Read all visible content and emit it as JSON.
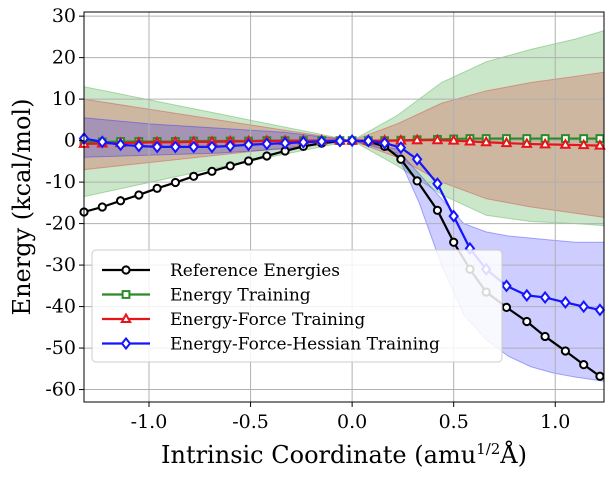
{
  "chart_data": {
    "type": "line",
    "xlabel": "Intrinsic Coordinate (amu",
    "xlabel_sup": "1/2",
    "xlabel_unit": "Å)",
    "ylabel": "Energy (kcal/mol)",
    "xlim": [
      -1.32,
      1.24
    ],
    "ylim": [
      -63,
      31
    ],
    "xticks": [
      -1.0,
      -0.5,
      0.0,
      0.5,
      1.0
    ],
    "xtick_labels": [
      "-1.0",
      "-0.5",
      "0.0",
      "0.5",
      "1.0"
    ],
    "yticks": [
      30,
      20,
      10,
      0,
      -10,
      -20,
      -30,
      -40,
      -50,
      -60
    ],
    "ytick_labels": [
      "30",
      "20",
      "10",
      "0",
      "-10",
      "-20",
      "-30",
      "-40",
      "-50",
      "-60"
    ],
    "grid": true,
    "legend_position": "bottom-left",
    "bands": [
      {
        "name": "Energy Training uncertainty",
        "color": "#2ca02c",
        "opacity": 0.25,
        "x": [
          -1.32,
          -0.66,
          0.0,
          0.22,
          0.44,
          0.66,
          0.88,
          1.1,
          1.24
        ],
        "upper": [
          13,
          6.5,
          0,
          6,
          14,
          19,
          22,
          24.5,
          26.5
        ],
        "lower": [
          -13.5,
          -6.5,
          0,
          -6,
          -13,
          -18,
          -19.5,
          -20,
          -20.5
        ]
      },
      {
        "name": "Energy-Force Training uncertainty",
        "color": "#d62728",
        "opacity": 0.25,
        "x": [
          -1.32,
          -0.66,
          0.0,
          0.22,
          0.44,
          0.66,
          0.88,
          1.1,
          1.24
        ],
        "upper": [
          10,
          5,
          0,
          4,
          9,
          12,
          14,
          15.5,
          16.5
        ],
        "lower": [
          -7,
          -3.5,
          0,
          -4,
          -10,
          -14,
          -16,
          -17.5,
          -18.5
        ]
      },
      {
        "name": "Energy-Force-Hessian Training uncertainty",
        "color": "#1a1aff",
        "opacity": 0.22,
        "x": [
          -1.32,
          -0.99,
          -0.66,
          -0.33,
          0.0,
          0.22,
          0.33,
          0.44,
          0.55,
          0.66,
          0.77,
          0.88,
          0.99,
          1.1,
          1.24
        ],
        "upper": [
          5.5,
          4,
          3,
          2,
          0,
          -2,
          -8,
          -14,
          -20,
          -22,
          -23,
          -23.5,
          -24,
          -24.5,
          -24.5
        ],
        "lower": [
          -4,
          -3.5,
          -3,
          -2,
          0,
          -3,
          -15,
          -30,
          -42,
          -48,
          -52,
          -54.5,
          -56,
          -57,
          -58
        ]
      }
    ],
    "series": [
      {
        "name": "Reference Energies",
        "color": "#000000",
        "marker": "circle",
        "x": [
          -1.32,
          -1.23,
          -1.14,
          -1.05,
          -0.96,
          -0.87,
          -0.78,
          -0.69,
          -0.6,
          -0.51,
          -0.42,
          -0.33,
          -0.24,
          -0.15,
          -0.06,
          0.0,
          0.08,
          0.16,
          0.24,
          0.32,
          0.42,
          0.5,
          0.58,
          0.66,
          0.76,
          0.86,
          0.95,
          1.05,
          1.14,
          1.22
        ],
        "y": [
          -17.2,
          -16,
          -14.5,
          -13.1,
          -11.5,
          -10.1,
          -8.6,
          -7.4,
          -6.1,
          -4.9,
          -3.7,
          -2.5,
          -1.4,
          -0.6,
          -0.1,
          0,
          -0.2,
          -1.4,
          -4.5,
          -9.7,
          -16.8,
          -24.5,
          -31,
          -36.5,
          -40.2,
          -43.6,
          -47.2,
          -50.7,
          -54,
          -56.8
        ]
      },
      {
        "name": "Energy Training",
        "color": "#2a8a2a",
        "marker": "square",
        "x": [
          -1.32,
          -1.23,
          -1.14,
          -1.05,
          -0.96,
          -0.87,
          -0.78,
          -0.69,
          -0.6,
          -0.51,
          -0.42,
          -0.33,
          -0.24,
          -0.15,
          -0.06,
          0.0,
          0.08,
          0.16,
          0.24,
          0.32,
          0.42,
          0.5,
          0.58,
          0.66,
          0.76,
          0.86,
          0.95,
          1.05,
          1.14,
          1.22
        ],
        "y": [
          -0.3,
          -0.3,
          -0.2,
          -0.2,
          -0.2,
          -0.2,
          -0.1,
          -0.1,
          -0.1,
          -0.1,
          0,
          0,
          0,
          0,
          0,
          0,
          0,
          0,
          0.1,
          0.2,
          0.3,
          0.4,
          0.5,
          0.5,
          0.5,
          0.5,
          0.5,
          0.5,
          0.5,
          0.5
        ]
      },
      {
        "name": "Energy-Force Training",
        "color": "#e8141b",
        "marker": "triangle",
        "x": [
          -1.32,
          -1.23,
          -1.14,
          -1.05,
          -0.96,
          -0.87,
          -0.78,
          -0.69,
          -0.6,
          -0.51,
          -0.42,
          -0.33,
          -0.24,
          -0.15,
          -0.06,
          0.0,
          0.08,
          0.16,
          0.24,
          0.32,
          0.42,
          0.5,
          0.58,
          0.66,
          0.76,
          0.86,
          0.95,
          1.05,
          1.14,
          1.22
        ],
        "y": [
          -0.8,
          -0.7,
          -0.6,
          -0.5,
          -0.4,
          -0.4,
          -0.3,
          -0.3,
          -0.2,
          -0.2,
          -0.1,
          -0.1,
          0,
          0,
          0,
          0,
          0,
          0,
          0,
          0.1,
          0.1,
          0,
          -0.2,
          -0.4,
          -0.6,
          -0.8,
          -0.9,
          -1.0,
          -1.1,
          -1.2
        ]
      },
      {
        "name": "Energy-Force-Hessian Training",
        "color": "#1414ff",
        "marker": "diamond",
        "x": [
          -1.32,
          -1.23,
          -1.14,
          -1.05,
          -0.96,
          -0.87,
          -0.78,
          -0.69,
          -0.6,
          -0.51,
          -0.42,
          -0.33,
          -0.24,
          -0.15,
          -0.06,
          0.0,
          0.08,
          0.16,
          0.24,
          0.32,
          0.42,
          0.5,
          0.58,
          0.66,
          0.76,
          0.86,
          0.95,
          1.05,
          1.14,
          1.22
        ],
        "y": [
          0.5,
          -0.3,
          -1.0,
          -1.3,
          -1.5,
          -1.5,
          -1.5,
          -1.5,
          -1.3,
          -1.0,
          -0.8,
          -0.6,
          -0.4,
          -0.2,
          -0.1,
          0,
          -0.1,
          -0.6,
          -1.7,
          -4.5,
          -10.4,
          -18.2,
          -26,
          -31,
          -35,
          -37.3,
          -37.8,
          -39,
          -40,
          -40.8
        ]
      }
    ]
  }
}
